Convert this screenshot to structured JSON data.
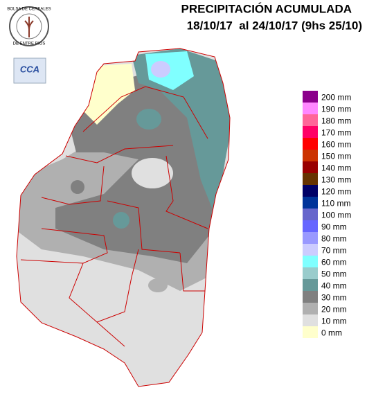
{
  "header": {
    "title": "PRECIPITACIÓN ACUMULADA",
    "subtitle": "18/10/17  al 24/10/17 (9hs 25/10)"
  },
  "logos": {
    "top": "BOLSA DE CEREALES",
    "bottom": "DE ENTRE RIOS",
    "badge": "CCA"
  },
  "legend": [
    {
      "label": "200 mm",
      "color": "#8b008b"
    },
    {
      "label": "190 mm",
      "color": "#ff88ff"
    },
    {
      "label": "180 mm",
      "color": "#ff6699"
    },
    {
      "label": "170 mm",
      "color": "#ff0066"
    },
    {
      "label": "160 mm",
      "color": "#ff0000"
    },
    {
      "label": "150 mm",
      "color": "#cc3300"
    },
    {
      "label": "140 mm",
      "color": "#990000"
    },
    {
      "label": "130 mm",
      "color": "#663300"
    },
    {
      "label": "120 mm",
      "color": "#000066"
    },
    {
      "label": "110 mm",
      "color": "#003399"
    },
    {
      "label": "100 mm",
      "color": "#6666cc"
    },
    {
      "label": "90 mm",
      "color": "#6666ff"
    },
    {
      "label": "80 mm",
      "color": "#9999ff"
    },
    {
      "label": "70 mm",
      "color": "#ccccff"
    },
    {
      "label": "60 mm",
      "color": "#80ffff"
    },
    {
      "label": "50 mm",
      "color": "#99cccc"
    },
    {
      "label": "40 mm",
      "color": "#669999"
    },
    {
      "label": "30 mm",
      "color": "#808080"
    },
    {
      "label": "20 mm",
      "color": "#b0b0b0"
    },
    {
      "label": "10 mm",
      "color": "#e0e0e0"
    },
    {
      "label": "0 mm",
      "color": "#ffffcc"
    }
  ]
}
